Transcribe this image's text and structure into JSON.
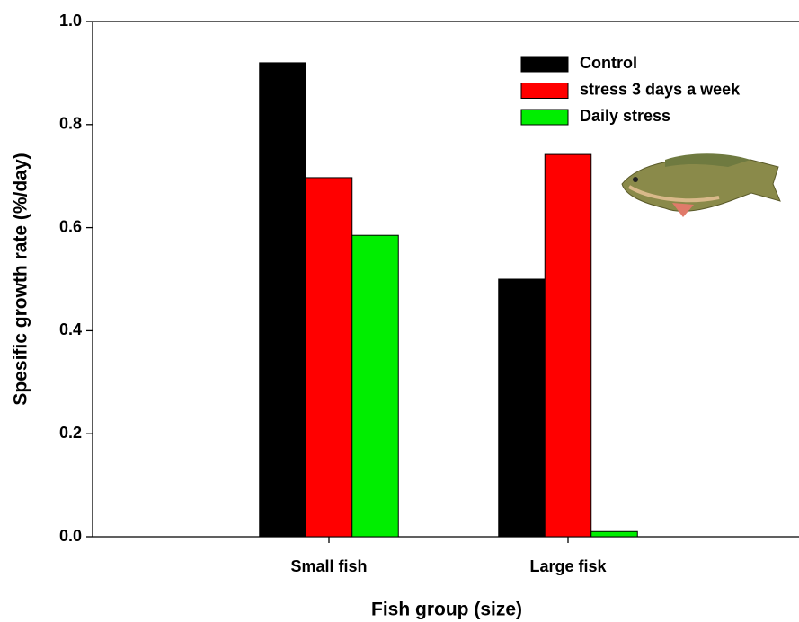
{
  "chart_data": {
    "type": "bar",
    "x_label": "Fish group (size)",
    "y_label": "Spesific growth rate (%/day)",
    "categories": [
      "Small fish",
      "Large fisk"
    ],
    "series": [
      {
        "name": "Control",
        "color": "#000000",
        "values": [
          0.92,
          0.5
        ]
      },
      {
        "name": "stress 3 days a week",
        "color": "#ff0000",
        "values": [
          0.697,
          0.742
        ]
      },
      {
        "name": "Daily stress",
        "color": "#00ee00",
        "values": [
          0.585,
          0.01
        ]
      }
    ],
    "ylim": [
      0,
      1
    ],
    "yticks": [
      {
        "value": 0,
        "label": "0.0"
      },
      0.2,
      0.4,
      0.6,
      0.8,
      {
        "value": 1,
        "label": "1.0"
      }
    ],
    "legend": "top-right"
  }
}
